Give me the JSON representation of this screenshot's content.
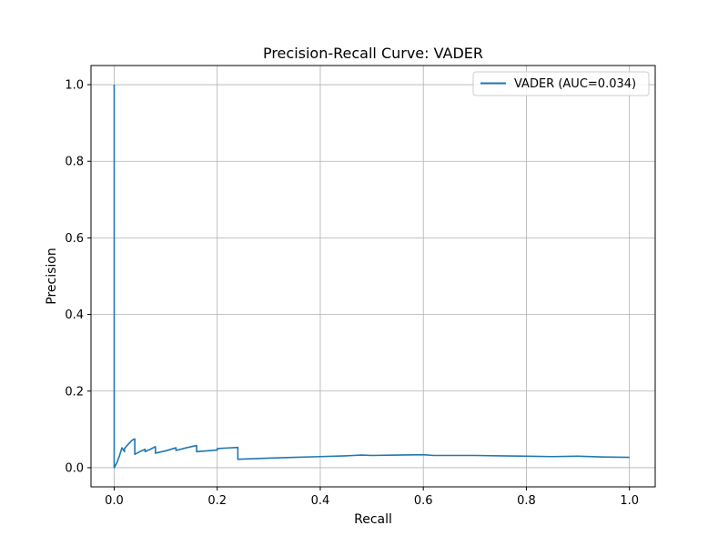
{
  "chart_data": {
    "type": "line",
    "title": "Precision-Recall Curve: VADER",
    "xlabel": "Recall",
    "ylabel": "Precision",
    "xlim": [
      -0.045,
      1.05
    ],
    "ylim": [
      -0.05,
      1.05
    ],
    "xticks": [
      0.0,
      0.2,
      0.4,
      0.6,
      0.8,
      1.0
    ],
    "yticks": [
      0.0,
      0.2,
      0.4,
      0.6,
      0.8,
      1.0
    ],
    "xtick_labels": [
      "0.0",
      "0.2",
      "0.4",
      "0.6",
      "0.8",
      "1.0"
    ],
    "ytick_labels": [
      "0.0",
      "0.2",
      "0.4",
      "0.6",
      "0.8",
      "1.0"
    ],
    "grid": true,
    "legend": {
      "position": "top-right"
    },
    "series": [
      {
        "name": "VADER (AUC=0.034)",
        "color": "#1f77b4",
        "x": [
          0.0,
          0.0,
          0.0,
          0.005,
          0.01,
          0.015,
          0.02,
          0.02,
          0.025,
          0.03,
          0.035,
          0.04,
          0.04,
          0.05,
          0.06,
          0.06,
          0.07,
          0.08,
          0.08,
          0.1,
          0.12,
          0.12,
          0.14,
          0.16,
          0.16,
          0.2,
          0.2,
          0.24,
          0.24,
          0.3,
          0.35,
          0.4,
          0.45,
          0.48,
          0.5,
          0.55,
          0.6,
          0.62,
          0.65,
          0.7,
          0.75,
          0.8,
          0.85,
          0.9,
          0.95,
          1.0
        ],
        "y": [
          1.0,
          0.0,
          0.0,
          0.012,
          0.03,
          0.052,
          0.042,
          0.05,
          0.058,
          0.065,
          0.072,
          0.075,
          0.035,
          0.042,
          0.048,
          0.042,
          0.048,
          0.055,
          0.038,
          0.044,
          0.052,
          0.045,
          0.052,
          0.058,
          0.042,
          0.046,
          0.05,
          0.053,
          0.022,
          0.025,
          0.027,
          0.029,
          0.031,
          0.033,
          0.032,
          0.033,
          0.034,
          0.032,
          0.032,
          0.032,
          0.031,
          0.03,
          0.029,
          0.03,
          0.028,
          0.027
        ]
      }
    ]
  }
}
